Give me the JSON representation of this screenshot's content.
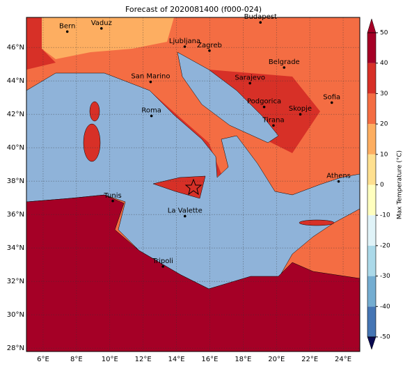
{
  "title": "Forecast of 2020081400 (f000-024)",
  "xlim": [
    5,
    25
  ],
  "ylim": [
    27.8,
    47.8
  ],
  "xticks": [
    {
      "value": 6,
      "label": "6°E"
    },
    {
      "value": 8,
      "label": "8°E"
    },
    {
      "value": 10,
      "label": "10°E"
    },
    {
      "value": 12,
      "label": "12°E"
    },
    {
      "value": 14,
      "label": "14°E"
    },
    {
      "value": 16,
      "label": "16°E"
    },
    {
      "value": 18,
      "label": "18°E"
    },
    {
      "value": 20,
      "label": "20°E"
    },
    {
      "value": 22,
      "label": "22°E"
    },
    {
      "value": 24,
      "label": "24°E"
    }
  ],
  "yticks": [
    {
      "value": 28,
      "label": "28°N"
    },
    {
      "value": 30,
      "label": "30°N"
    },
    {
      "value": 32,
      "label": "32°N"
    },
    {
      "value": 34,
      "label": "34°N"
    },
    {
      "value": 36,
      "label": "36°N"
    },
    {
      "value": 38,
      "label": "38°N"
    },
    {
      "value": 40,
      "label": "40°N"
    },
    {
      "value": 42,
      "label": "42°N"
    },
    {
      "value": 44,
      "label": "44°N"
    },
    {
      "value": 46,
      "label": "46°N"
    }
  ],
  "cities": [
    {
      "name": "Bern",
      "lon": 7.45,
      "lat": 46.95
    },
    {
      "name": "Vaduz",
      "lon": 9.5,
      "lat": 47.14
    },
    {
      "name": "Budapest",
      "lon": 19.04,
      "lat": 47.5
    },
    {
      "name": "Ljubljana",
      "lon": 14.5,
      "lat": 46.05
    },
    {
      "name": "Zagreb",
      "lon": 15.98,
      "lat": 45.81
    },
    {
      "name": "San Marino",
      "lon": 12.45,
      "lat": 43.94
    },
    {
      "name": "Belgrade",
      "lon": 20.46,
      "lat": 44.8
    },
    {
      "name": "Sarajevo",
      "lon": 18.41,
      "lat": 43.86
    },
    {
      "name": "Podgorica",
      "lon": 19.26,
      "lat": 42.44
    },
    {
      "name": "Sofia",
      "lon": 23.32,
      "lat": 42.7
    },
    {
      "name": "Roma",
      "lon": 12.5,
      "lat": 41.9
    },
    {
      "name": "Skopje",
      "lon": 21.43,
      "lat": 42.0
    },
    {
      "name": "Tirana",
      "lon": 19.82,
      "lat": 41.33
    },
    {
      "name": "Athens",
      "lon": 23.73,
      "lat": 37.98
    },
    {
      "name": "Tunis",
      "lon": 10.18,
      "lat": 36.81
    },
    {
      "name": "La Valette",
      "lon": 14.51,
      "lat": 35.9
    },
    {
      "name": "Tripoli",
      "lon": 13.19,
      "lat": 32.89
    }
  ],
  "colorbar": {
    "label": "Max Temperature (°C)",
    "lim": [
      -50,
      50
    ],
    "ticks": [
      -50,
      -40,
      -30,
      -20,
      -10,
      0,
      10,
      20,
      30,
      40,
      50
    ],
    "colors": [
      "#313695",
      "#4575b4",
      "#74add1",
      "#abd9e9",
      "#e0f3f8",
      "#ffffbf",
      "#fee090",
      "#fdae61",
      "#f46d43",
      "#d73027",
      "#a50026"
    ]
  }
}
